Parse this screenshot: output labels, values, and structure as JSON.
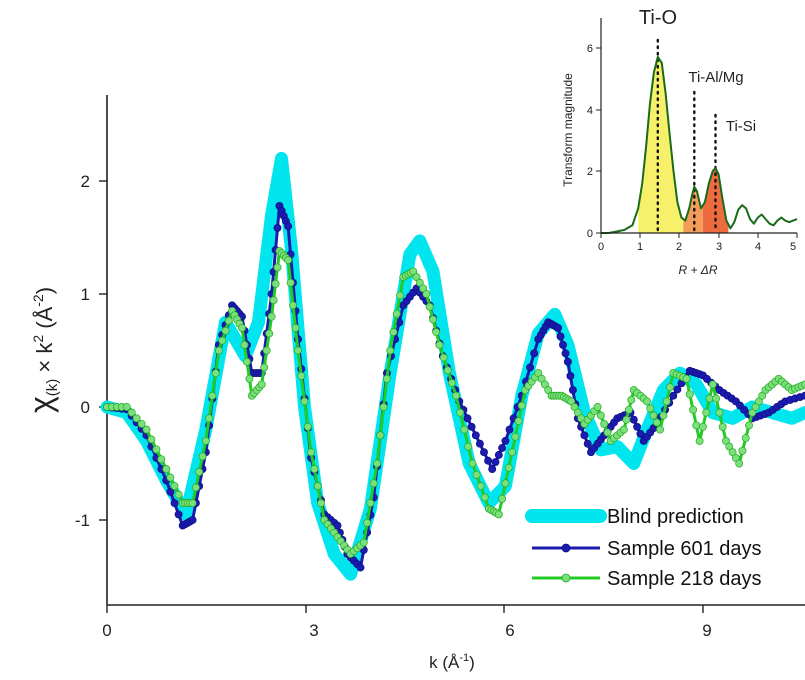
{
  "chart_data": [
    {
      "type": "line",
      "xlabel": "k (Å",
      "xlabel_exp": "-1",
      "xlabel_close": ")",
      "ylabel_chi": "χ",
      "ylabel_k": "(k)",
      "ylabel_times": " × k",
      "ylabel_exp2": "2",
      "ylabel_unit": "  (Å",
      "ylabel_unit_exp": "-2",
      "ylabel_close": ")",
      "xlim": [
        0,
        10.6
      ],
      "ylim": [
        -1.75,
        2.5
      ],
      "xticks": [
        0,
        3,
        6,
        9
      ],
      "xtick_labels": [
        "0",
        "3",
        "6",
        "9"
      ],
      "yticks": [
        -1,
        0,
        1,
        2
      ],
      "ytick_labels": [
        "-1",
        "0",
        "1",
        "2"
      ],
      "legend_position": "bottom-right",
      "series": [
        {
          "name": "Blind prediction",
          "color": "#00e5ee",
          "style": "thick-line",
          "x": [
            0,
            0.3,
            0.6,
            0.9,
            1.2,
            1.5,
            1.8,
            2.1,
            2.3,
            2.5,
            2.65,
            2.8,
            3.0,
            3.2,
            3.45,
            3.7,
            4.0,
            4.3,
            4.6,
            4.75,
            4.95,
            5.2,
            5.5,
            5.8,
            6.05,
            6.3,
            6.55,
            6.8,
            7.0,
            7.25,
            7.5,
            7.75,
            8.0,
            8.2,
            8.45,
            8.7,
            8.95,
            9.2,
            9.5,
            9.8,
            10.1,
            10.4,
            10.6
          ],
          "y": [
            0,
            -0.05,
            -0.3,
            -0.65,
            -0.95,
            -0.2,
            0.75,
            0.45,
            0.75,
            1.7,
            2.2,
            1.4,
            0.0,
            -0.85,
            -1.3,
            -1.48,
            -0.9,
            0.3,
            1.35,
            1.47,
            1.2,
            0.3,
            -0.5,
            -0.85,
            -0.7,
            0.1,
            0.65,
            0.82,
            0.55,
            -0.05,
            -0.38,
            -0.35,
            -0.5,
            -0.2,
            0.15,
            0.3,
            0.2,
            -0.05,
            -0.1,
            0.0,
            -0.05,
            -0.1,
            -0.05
          ]
        },
        {
          "name": "Sample 601 days",
          "color": "#1b1bb0",
          "style": "line-markers",
          "x": [
            0,
            0.3,
            0.6,
            0.9,
            1.15,
            1.3,
            1.5,
            1.7,
            1.9,
            2.05,
            2.2,
            2.35,
            2.5,
            2.62,
            2.75,
            2.9,
            3.1,
            3.3,
            3.5,
            3.65,
            3.85,
            4.05,
            4.25,
            4.5,
            4.7,
            4.9,
            5.1,
            5.35,
            5.6,
            5.85,
            6.05,
            6.3,
            6.55,
            6.7,
            6.85,
            7.0,
            7.15,
            7.35,
            7.55,
            7.75,
            7.95,
            8.15,
            8.35,
            8.6,
            8.85,
            9.05,
            9.3,
            9.55,
            9.8,
            10.05,
            10.3,
            10.6
          ],
          "y": [
            0,
            -0.02,
            -0.25,
            -0.65,
            -1.05,
            -1.0,
            -0.4,
            0.55,
            0.9,
            0.8,
            0.3,
            0.3,
            1.0,
            1.78,
            1.6,
            0.6,
            -0.45,
            -0.95,
            -1.05,
            -1.3,
            -1.42,
            -0.8,
            0.3,
            0.9,
            1.05,
            0.9,
            0.45,
            0.05,
            -0.25,
            -0.55,
            -0.3,
            0.1,
            0.6,
            0.75,
            0.7,
            0.4,
            -0.1,
            -0.4,
            -0.25,
            -0.1,
            -0.05,
            -0.3,
            -0.15,
            0.1,
            0.32,
            0.28,
            0.15,
            0.05,
            -0.1,
            -0.05,
            0.05,
            0.1
          ]
        },
        {
          "name": "Sample 218 days",
          "color": "#22cc22",
          "marker_fill": "#7be07b",
          "style": "line-markers",
          "x": [
            0,
            0.3,
            0.6,
            0.9,
            1.15,
            1.3,
            1.5,
            1.7,
            1.9,
            2.05,
            2.2,
            2.35,
            2.5,
            2.62,
            2.75,
            2.9,
            3.1,
            3.3,
            3.5,
            3.7,
            3.9,
            4.1,
            4.3,
            4.5,
            4.65,
            4.85,
            5.05,
            5.3,
            5.55,
            5.8,
            5.95,
            6.15,
            6.35,
            6.55,
            6.75,
            6.9,
            7.05,
            7.25,
            7.45,
            7.65,
            7.85,
            8.0,
            8.2,
            8.4,
            8.6,
            8.8,
            9.0,
            9.2,
            9.4,
            9.6,
            9.8,
            10.0,
            10.2,
            10.4,
            10.6
          ],
          "y": [
            0,
            0.0,
            -0.2,
            -0.55,
            -0.85,
            -0.85,
            -0.3,
            0.5,
            0.85,
            0.7,
            0.1,
            0.2,
            0.8,
            1.38,
            1.3,
            0.5,
            -0.4,
            -1.0,
            -1.15,
            -1.3,
            -1.2,
            -0.5,
            0.5,
            1.15,
            1.2,
            1.0,
            0.55,
            0.1,
            -0.5,
            -0.9,
            -0.95,
            -0.4,
            0.15,
            0.3,
            0.1,
            0.1,
            0.05,
            -0.15,
            0.0,
            -0.3,
            -0.2,
            0.15,
            0.05,
            -0.2,
            0.3,
            0.25,
            -0.3,
            0.2,
            -0.3,
            -0.5,
            -0.05,
            0.15,
            0.25,
            0.15,
            0.2
          ]
        }
      ]
    },
    {
      "type": "area",
      "xlabel": "R + ΔR",
      "ylabel": "Transform magnitude",
      "xlim": [
        0,
        5
      ],
      "ylim": [
        0,
        7
      ],
      "xticks": [
        0,
        1,
        2,
        3,
        4,
        5
      ],
      "xtick_labels": [
        "0",
        "1",
        "2",
        "3",
        "4",
        "5"
      ],
      "yticks": [
        0,
        2,
        4,
        6
      ],
      "ytick_labels": [
        "0",
        "2",
        "4",
        "6"
      ],
      "line_color": "#1a6b1a",
      "peaks": [
        {
          "label": "Ti-O",
          "r": 1.45,
          "height": 5.7,
          "fill": "#f7f06a"
        },
        {
          "label": "Ti-Al/Mg",
          "r": 2.38,
          "height": 1.5,
          "fill": "#f59c5a"
        },
        {
          "label": "Ti-Si",
          "r": 2.92,
          "height": 2.1,
          "fill": "#ee6a3f"
        }
      ],
      "x": [
        0,
        0.2,
        0.4,
        0.6,
        0.8,
        0.95,
        1.05,
        1.15,
        1.25,
        1.35,
        1.45,
        1.55,
        1.65,
        1.75,
        1.85,
        1.95,
        2.05,
        2.15,
        2.25,
        2.32,
        2.38,
        2.45,
        2.55,
        2.65,
        2.75,
        2.85,
        2.92,
        3.0,
        3.1,
        3.2,
        3.3,
        3.4,
        3.5,
        3.6,
        3.7,
        3.8,
        3.9,
        4.0,
        4.1,
        4.2,
        4.3,
        4.4,
        4.5,
        4.6,
        4.7,
        4.8,
        4.9,
        5.0
      ],
      "y": [
        0,
        0.0,
        0.05,
        0.1,
        0.25,
        0.8,
        1.6,
        2.8,
        4.2,
        5.2,
        5.7,
        5.5,
        4.5,
        3.2,
        2.0,
        1.0,
        0.5,
        0.4,
        0.8,
        1.2,
        1.5,
        1.35,
        0.8,
        1.0,
        1.6,
        2.0,
        2.1,
        1.9,
        1.1,
        0.4,
        0.15,
        0.35,
        0.75,
        0.9,
        0.8,
        0.45,
        0.3,
        0.5,
        0.6,
        0.45,
        0.3,
        0.25,
        0.4,
        0.5,
        0.4,
        0.35,
        0.4,
        0.45
      ]
    }
  ]
}
